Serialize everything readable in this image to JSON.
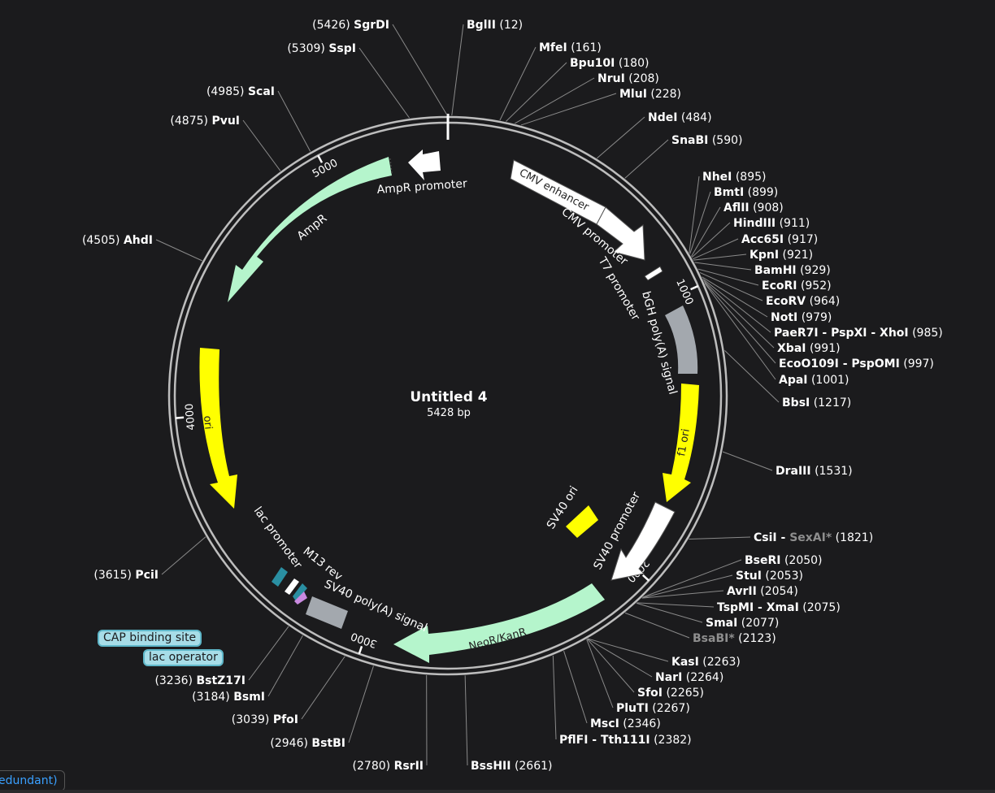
{
  "plasmid": {
    "name": "Untitled 4",
    "length_label": "5428 bp",
    "length": 5428
  },
  "ticks": [
    "1000",
    "2000",
    "3000",
    "4000",
    "5000"
  ],
  "features": [
    {
      "name": "CMV enhancer",
      "color": "#ffffff"
    },
    {
      "name": "CMV promoter",
      "color": "#ffffff"
    },
    {
      "name": "T7 promoter",
      "color": "#ffffff"
    },
    {
      "name": "bGH poly(A) signal",
      "color": "#a3a8ae"
    },
    {
      "name": "f1 ori",
      "color": "#ffff00"
    },
    {
      "name": "SV40 promoter",
      "color": "#ffffff"
    },
    {
      "name": "SV40 ori",
      "color": "#ffff00"
    },
    {
      "name": "NeoR/KanR",
      "color": "#b5f5cc"
    },
    {
      "name": "SV40 poly(A) signal",
      "color": "#a3a8ae"
    },
    {
      "name": "M13 rev",
      "color": "#ffffff"
    },
    {
      "name": "lac promoter",
      "color": "#ffffff"
    },
    {
      "name": "ori",
      "color": "#ffff00"
    },
    {
      "name": "AmpR",
      "color": "#b5f5cc"
    },
    {
      "name": "AmpR promoter",
      "color": "#ffffff"
    }
  ],
  "boxed_labels": {
    "cap": "CAP binding site",
    "lac_operator": "lac operator"
  },
  "enzymes": [
    {
      "text": "SgrDI",
      "pos": "(5426)"
    },
    {
      "text": "BglII",
      "pos": "(12)"
    },
    {
      "text": "SspI",
      "pos": "(5309)"
    },
    {
      "text": "MfeI",
      "pos": "(161)"
    },
    {
      "text": "Bpu10I",
      "pos": "(180)"
    },
    {
      "text": "NruI",
      "pos": "(208)"
    },
    {
      "text": "MluI",
      "pos": "(228)"
    },
    {
      "text": "ScaI",
      "pos": "(4985)"
    },
    {
      "text": "NdeI",
      "pos": "(484)"
    },
    {
      "text": "PvuI",
      "pos": "(4875)"
    },
    {
      "text": "SnaBI",
      "pos": "(590)"
    },
    {
      "text": "NheI",
      "pos": "(895)"
    },
    {
      "text": "BmtI",
      "pos": "(899)"
    },
    {
      "text": "AflII",
      "pos": "(908)"
    },
    {
      "text": "HindIII",
      "pos": "(911)"
    },
    {
      "text": "AhdI",
      "pos": "(4505)"
    },
    {
      "text": "Acc65I",
      "pos": "(917)"
    },
    {
      "text": "KpnI",
      "pos": "(921)"
    },
    {
      "text": "BamHI",
      "pos": "(929)"
    },
    {
      "text": "EcoRI",
      "pos": "(952)"
    },
    {
      "text": "EcoRV",
      "pos": "(964)"
    },
    {
      "text": "NotI",
      "pos": "(979)"
    },
    {
      "text": "PaeR7I - PspXI - XhoI",
      "pos": "(985)"
    },
    {
      "text": "XbaI",
      "pos": "(991)"
    },
    {
      "text": "EcoO109I - PspOMI",
      "pos": "(997)"
    },
    {
      "text": "ApaI",
      "pos": "(1001)"
    },
    {
      "text": "BbsI",
      "pos": "(1217)"
    },
    {
      "text": "DraIII",
      "pos": "(1531)"
    },
    {
      "text": "CsiI - ",
      "text2": "SexAI*",
      "pos": "(1821)"
    },
    {
      "text": "BseRI",
      "pos": "(2050)"
    },
    {
      "text": "PciI",
      "pos": "(3615)"
    },
    {
      "text": "StuI",
      "pos": "(2053)"
    },
    {
      "text": "AvrII",
      "pos": "(2054)"
    },
    {
      "text": "TspMI - XmaI",
      "pos": "(2075)"
    },
    {
      "text": "SmaI",
      "pos": "(2077)"
    },
    {
      "text": "BsaBI*",
      "pos": "(2123)",
      "dim": true
    },
    {
      "text": "KasI",
      "pos": "(2263)"
    },
    {
      "text": "NarI",
      "pos": "(2264)"
    },
    {
      "text": "BstZ17I",
      "pos": "(3236)"
    },
    {
      "text": "SfoI",
      "pos": "(2265)"
    },
    {
      "text": "BsmI",
      "pos": "(3184)"
    },
    {
      "text": "PluTI",
      "pos": "(2267)"
    },
    {
      "text": "PfoI",
      "pos": "(3039)"
    },
    {
      "text": "MscI",
      "pos": "(2346)"
    },
    {
      "text": "PflFI - Tth111I",
      "pos": "(2382)"
    },
    {
      "text": "BstBI",
      "pos": "(2946)"
    },
    {
      "text": "RsrII",
      "pos": "(2780)"
    },
    {
      "text": "BssHII",
      "pos": "(2661)"
    }
  ],
  "footer": {
    "tab_label": "edundant)"
  },
  "colors": {
    "background": "#1b1b1d",
    "backbone": "#bdbdbd",
    "leader": "#8a8a8a",
    "cap_box": "#a7dde8"
  }
}
